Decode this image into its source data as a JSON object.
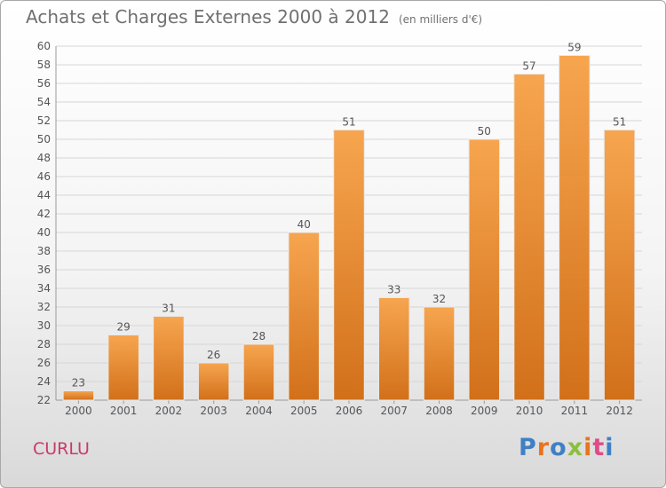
{
  "header": {
    "title": "Achats et Charges Externes 2000 à 2012",
    "unit": "(en milliers d'€)"
  },
  "footer": {
    "commune": "CURLU",
    "logo_text": "Proxiti"
  },
  "colors": {
    "bar_light": "#f7a54f",
    "bar_dark": "#d2701a",
    "grid": "#d6d6d6",
    "title": "#707070",
    "commune": "#c83a6e",
    "logo": [
      "#3f80c4",
      "#e9741d",
      "#3f80c4",
      "#8bbf3e",
      "#e9741d",
      "#e04a8a",
      "#3f80c4"
    ]
  },
  "chart_data": {
    "type": "bar",
    "title": "Achats et Charges Externes 2000 à 2012",
    "subtitle": "(en milliers d'€)",
    "categories": [
      "2000",
      "2001",
      "2002",
      "2003",
      "2004",
      "2005",
      "2006",
      "2007",
      "2008",
      "2009",
      "2010",
      "2011",
      "2012"
    ],
    "values": [
      23,
      29,
      31,
      26,
      28,
      40,
      51,
      33,
      32,
      50,
      57,
      59,
      51
    ],
    "ylim": [
      22,
      60
    ],
    "ytick_step": 2,
    "grid": true,
    "xlabel": "",
    "ylabel": ""
  }
}
